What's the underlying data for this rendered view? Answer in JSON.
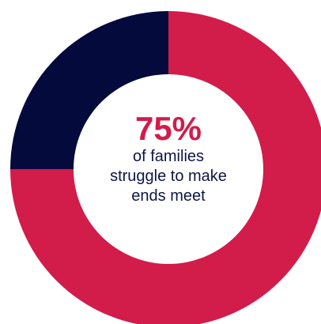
{
  "chart_data": {
    "type": "pie",
    "variant": "donut",
    "slices": [
      {
        "label": "struggle to make ends meet",
        "value": 75,
        "color": "#d21c4a"
      },
      {
        "label": "",
        "value": 25,
        "color": "#050a3c"
      }
    ],
    "center_value": "75%",
    "center_caption": [
      "of families",
      "struggle to make",
      "ends meet"
    ],
    "grid": false,
    "legend": "none"
  },
  "colors": {
    "accent": "#d21c4a",
    "navy": "#050a3c",
    "text": "#0d1645",
    "background": "#ffffff"
  }
}
